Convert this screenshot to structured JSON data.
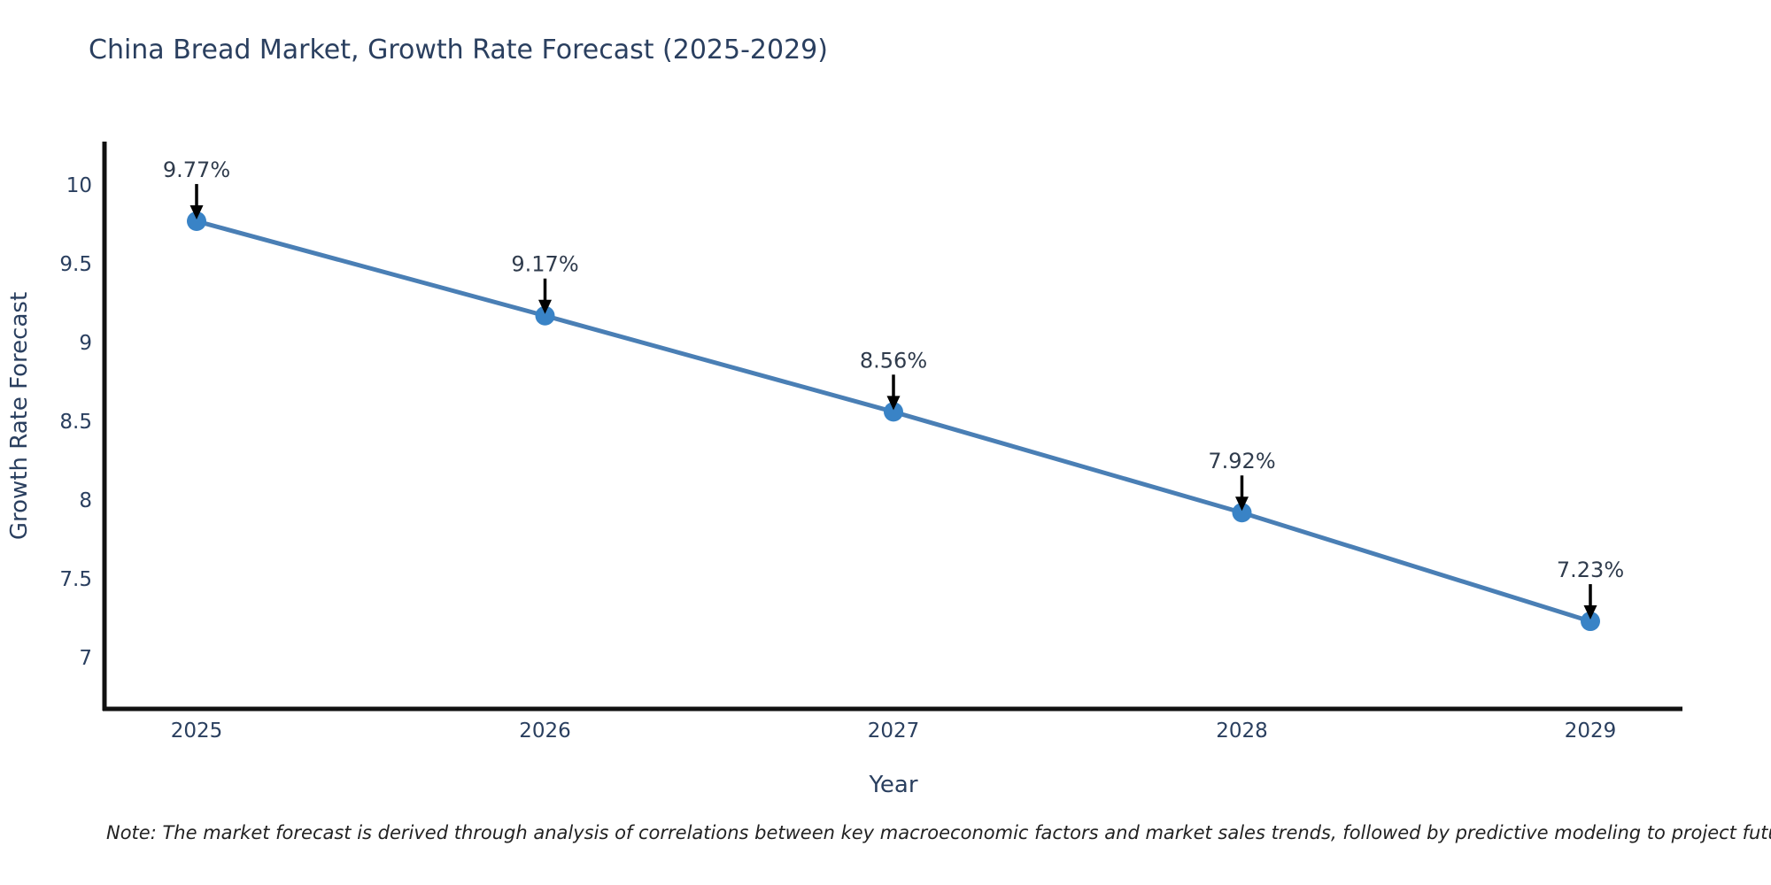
{
  "page": {
    "background": "#ffffff"
  },
  "chart_data": {
    "type": "line",
    "title": "China Bread Market, Growth Rate Forecast (2025-2029)",
    "xlabel": "Year",
    "ylabel": "Growth Rate Forecast",
    "categories": [
      "2025",
      "2026",
      "2027",
      "2028",
      "2029"
    ],
    "series": [
      {
        "name": "Growth Rate Forecast",
        "values": [
          9.77,
          9.17,
          8.56,
          7.92,
          7.23
        ]
      }
    ],
    "point_labels": [
      "9.77%",
      "9.17%",
      "8.56%",
      "7.92%",
      "7.23%"
    ],
    "yticks": [
      7,
      7.5,
      8,
      8.5,
      9,
      9.5,
      10
    ],
    "ytick_labels": [
      "7",
      "7.5",
      "8",
      "8.5",
      "9",
      "9.5",
      "10"
    ],
    "ylim": [
      6.67,
      10.28
    ],
    "grid": false,
    "legend_position": "none",
    "annotation_arrows": true,
    "colors": {
      "line": "#4a7fb5",
      "marker": "#3983c6",
      "axis": "#111111",
      "title_text": "#2a3f5f",
      "tick_text": "#2a3f5f",
      "annotation_text": "#2f3b4c",
      "arrow": "#000000",
      "note_text": "#222222"
    }
  },
  "note": {
    "text": "Note: The market forecast is derived through analysis of correlations between key macroeconomic factors and market sales trends, followed by predictive modeling to project future sales"
  }
}
